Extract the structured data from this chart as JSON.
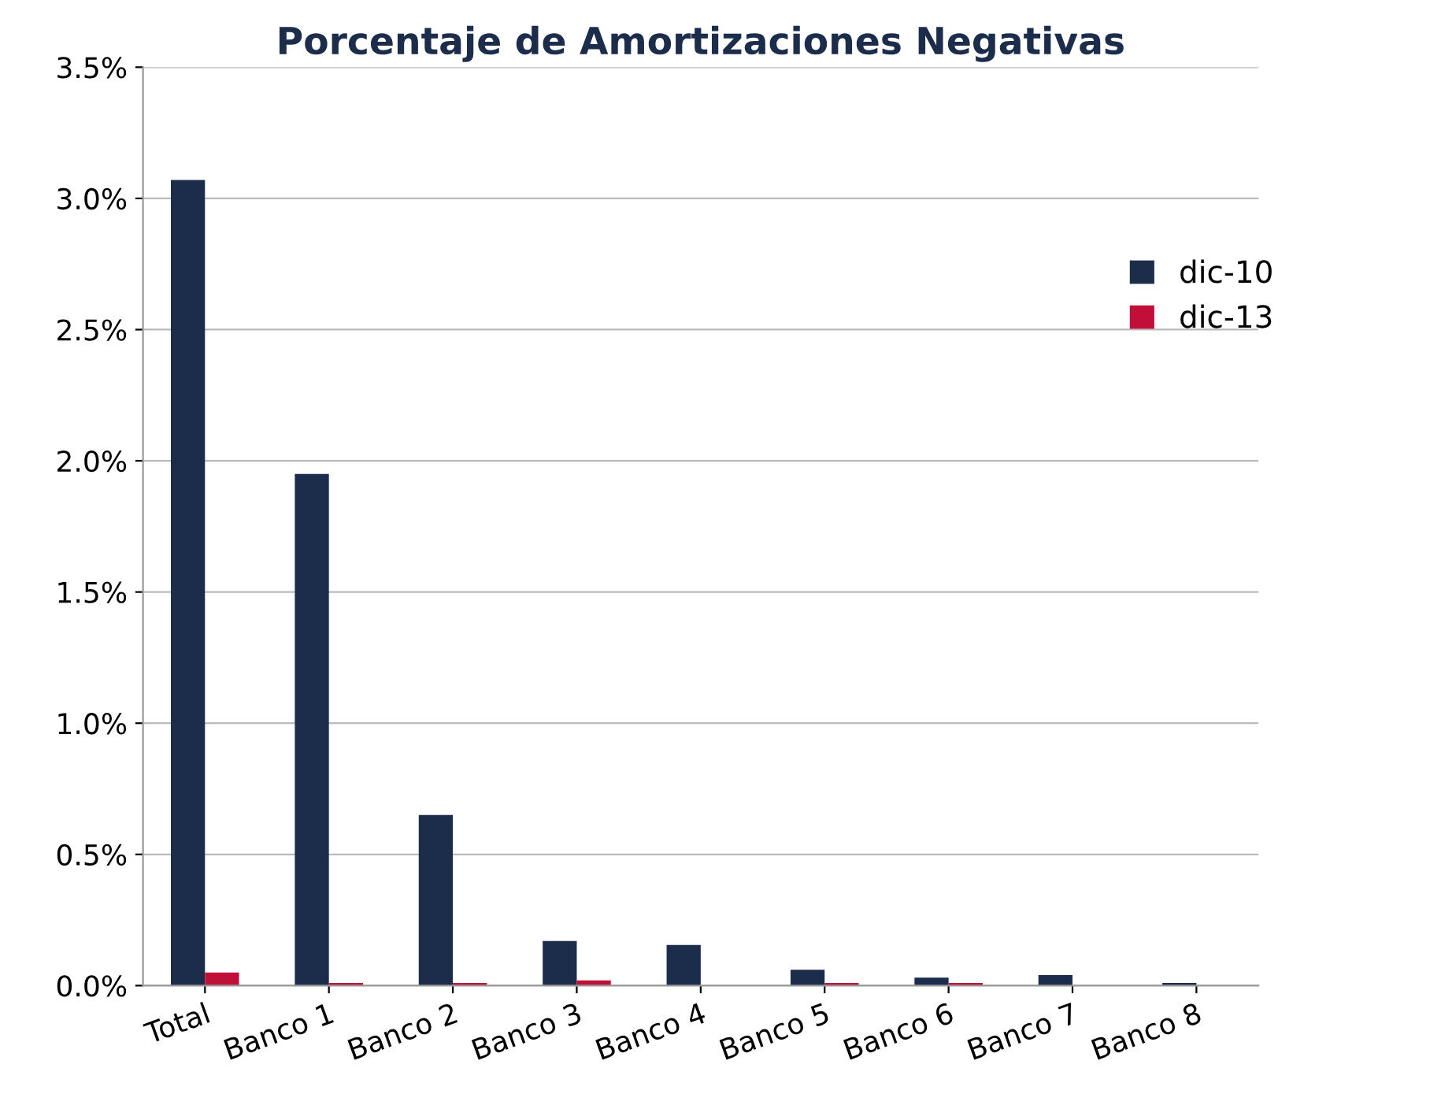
{
  "chart_data": {
    "type": "bar",
    "title": "Porcentaje de Amortizaciones Negativas",
    "categories": [
      "Total",
      "Banco 1",
      "Banco 2",
      "Banco 3",
      "Banco 4",
      "Banco 5",
      "Banco 6",
      "Banco 7",
      "Banco 8"
    ],
    "series": [
      {
        "name": "dic-10",
        "color": "#1b2d4b",
        "values": [
          3.07,
          1.95,
          0.65,
          0.17,
          0.155,
          0.06,
          0.03,
          0.04,
          0.01
        ]
      },
      {
        "name": "dic-13",
        "color": "#c0103a",
        "values": [
          0.05,
          0.01,
          0.01,
          0.02,
          0,
          0.01,
          0.01,
          0,
          0
        ]
      }
    ],
    "ylim": [
      0,
      3.5
    ],
    "yticks": [
      {
        "value": 0,
        "label": "0.0%"
      },
      {
        "value": 0.5,
        "label": "0.5%"
      },
      {
        "value": 1.0,
        "label": "1.0%"
      },
      {
        "value": 1.5,
        "label": "1.5%"
      },
      {
        "value": 2.0,
        "label": "2.0%"
      },
      {
        "value": 2.5,
        "label": "2.5%"
      },
      {
        "value": 3.0,
        "label": "3.0%"
      },
      {
        "value": 3.5,
        "label": "3.5%"
      }
    ],
    "grid": "y",
    "legend": "right"
  }
}
